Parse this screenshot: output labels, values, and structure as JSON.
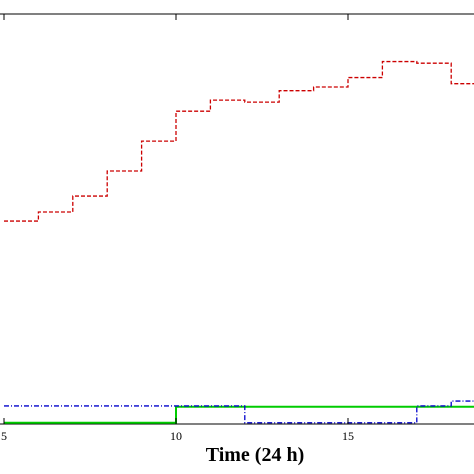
{
  "chart_data": {
    "type": "line",
    "xlabel": "Time (24 h)",
    "ylabel": "",
    "x_range": [
      5,
      18.8
    ],
    "y_range": [
      0,
      100
    ],
    "grid": false,
    "x_ticks": [
      5,
      10,
      15
    ],
    "x_tick_labels": [
      "5",
      "10",
      "15"
    ],
    "series": [
      {
        "style": "step",
        "color": "#cc0000",
        "dash": "dashed",
        "x": [
          5,
          6,
          7,
          8,
          9,
          10,
          11,
          12,
          13,
          14,
          15,
          16,
          17,
          18
        ],
        "y": [
          49.5,
          51.7,
          55.6,
          61.7,
          69.0,
          76.3,
          79.0,
          78.5,
          81.3,
          82.2,
          84.5,
          88.4,
          88.0,
          83.0
        ]
      },
      {
        "style": "step",
        "color": "#00cc00",
        "dash": "solid",
        "x": [
          5,
          10,
          18.8
        ],
        "y": [
          0.3,
          4.2,
          4.2
        ]
      },
      {
        "style": "step",
        "color": "#0000cc",
        "dash": "dashdot",
        "x": [
          5,
          10,
          12,
          17,
          18
        ],
        "y": [
          4.4,
          4.4,
          0.3,
          4.4,
          5.6
        ]
      }
    ]
  }
}
